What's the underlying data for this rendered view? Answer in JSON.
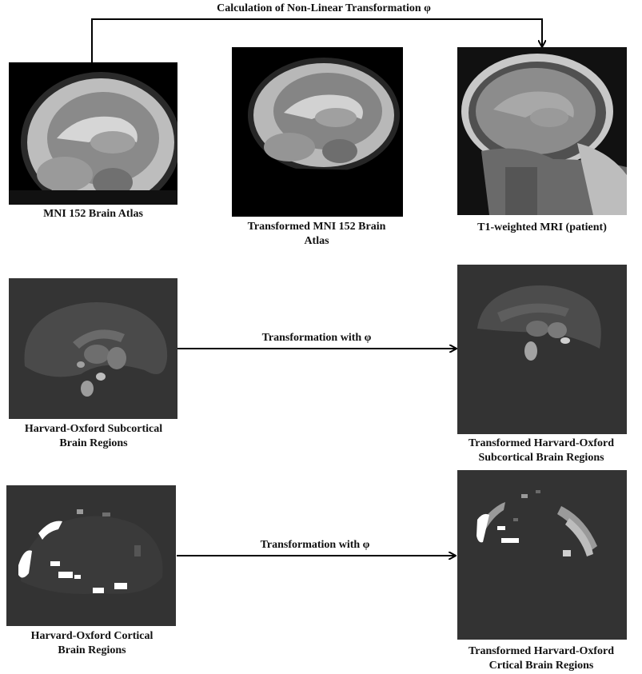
{
  "header": {
    "top_label": "Calculation of Non-Linear Transformation φ"
  },
  "row1": {
    "mni_caption": "MNI 152 Brain Atlas",
    "transformed_mni_caption_line1": "Transformed MNI 152 Brain",
    "transformed_mni_caption_line2": "Atlas",
    "patient_caption": "T1-weighted MRI (patient)"
  },
  "row2": {
    "arrow_label": "Transformation with φ",
    "left_caption_line1": "Harvard-Oxford Subcortical",
    "left_caption_line2": "Brain Regions",
    "right_caption_line1": "Transformed Harvard-Oxford",
    "right_caption_line2": "Subcortical Brain Regions"
  },
  "row3": {
    "arrow_label": "Transformation with φ",
    "left_caption_line1": "Harvard-Oxford Cortical",
    "left_caption_line2": "Brain Regions",
    "right_caption_line1": "Transformed Harvard-Oxford",
    "right_caption_line2": "Crtical Brain Regions"
  },
  "colors": {
    "arrow": "#000000",
    "seg_bg": "#333333",
    "mri_bg": "#000000"
  }
}
